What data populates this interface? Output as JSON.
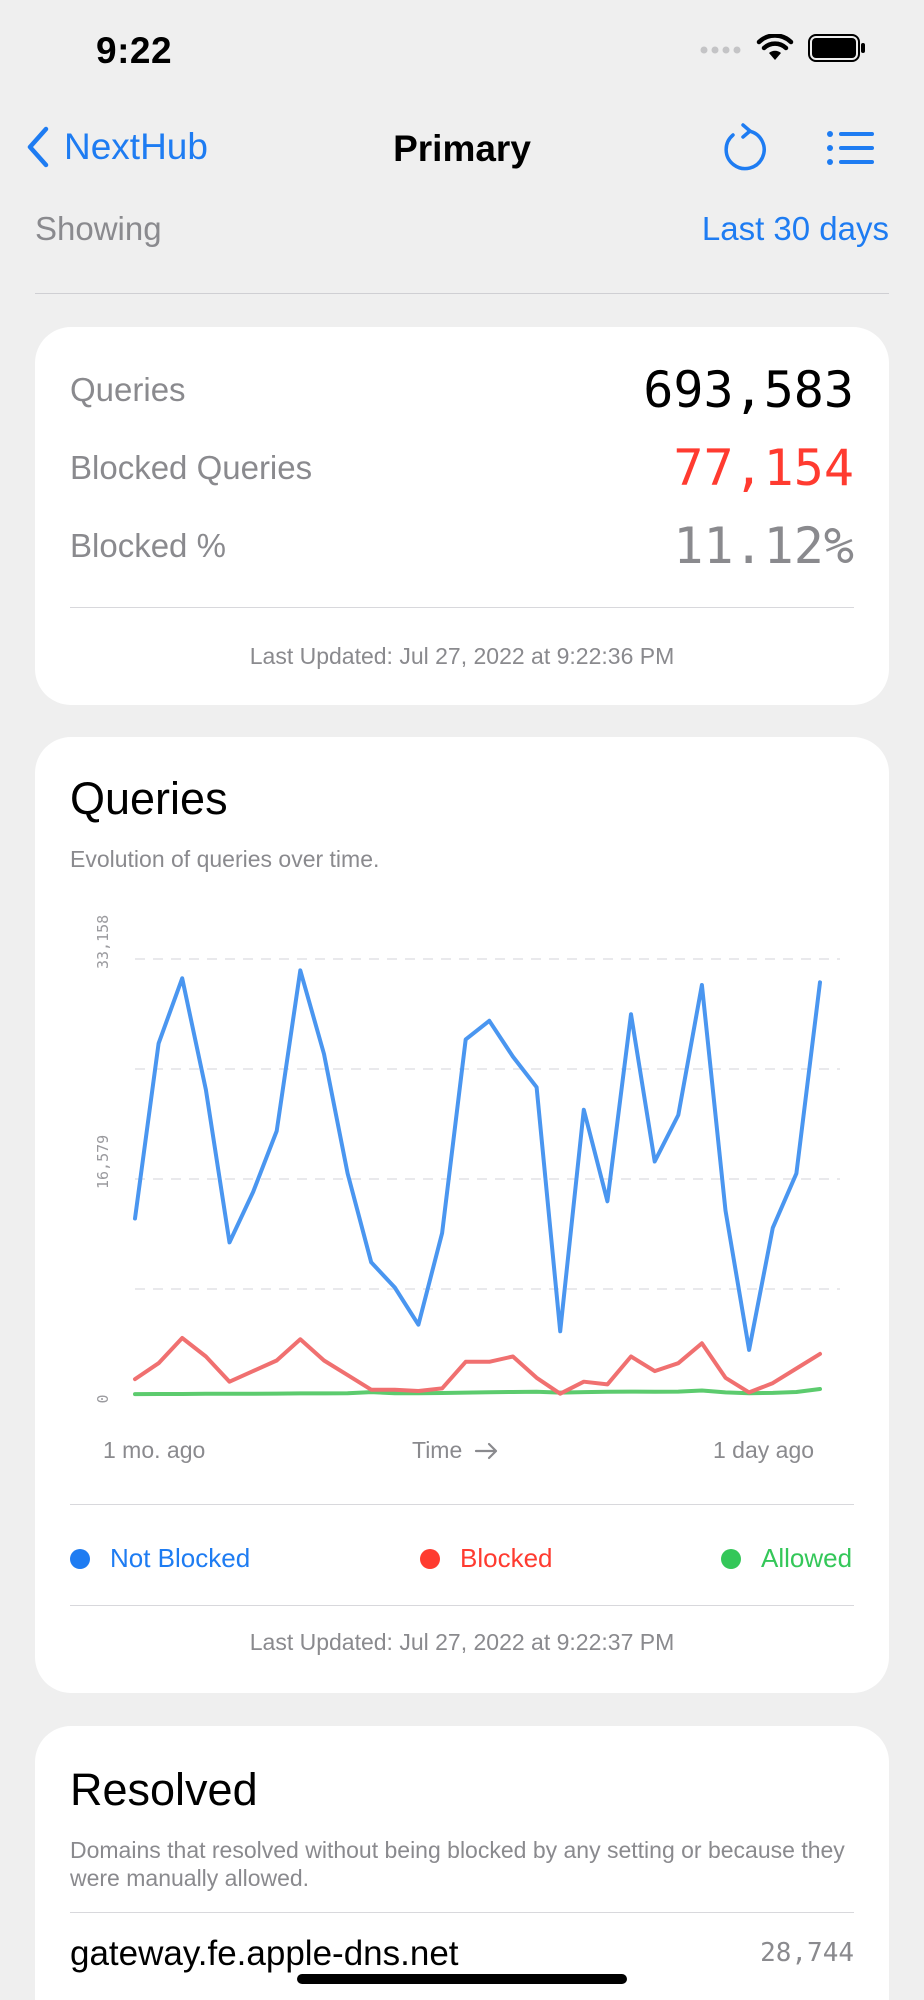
{
  "status_bar": {
    "time": "9:22"
  },
  "nav": {
    "back_label": "NextHub",
    "title": "Primary",
    "refresh_icon": "refresh-icon",
    "list_icon": "list-icon"
  },
  "showing": {
    "label": "Showing",
    "value": "Last 30 days"
  },
  "summary": {
    "queries_label": "Queries",
    "queries_value": "693,583",
    "blocked_label": "Blocked Queries",
    "blocked_value": "77,154",
    "percent_label": "Blocked %",
    "percent_value": "11.12%",
    "last_updated": "Last Updated: Jul 27, 2022 at 9:22:36 PM"
  },
  "queries_card": {
    "title": "Queries",
    "subtitle": "Evolution of queries over time.",
    "x_start": "1 mo. ago",
    "x_mid": "Time",
    "x_end": "1 day ago",
    "legend": [
      {
        "label": "Not Blocked",
        "color": "#1e7cf2"
      },
      {
        "label": "Blocked",
        "color": "#ff3b30"
      },
      {
        "label": "Allowed",
        "color": "#34c759"
      }
    ],
    "last_updated": "Last Updated: Jul 27, 2022 at 9:22:37 PM"
  },
  "chart_data": {
    "type": "line",
    "x": [
      1,
      2,
      3,
      4,
      5,
      6,
      7,
      8,
      9,
      10,
      11,
      12,
      13,
      14,
      15,
      16,
      17,
      18,
      19,
      20,
      21,
      22,
      23,
      24,
      25,
      26,
      27,
      28,
      29,
      30
    ],
    "y_ticks": [
      "0",
      "16,579",
      "33,158"
    ],
    "ylim": [
      0,
      33158
    ],
    "grid": true,
    "series": [
      {
        "name": "Not Blocked",
        "color": "#4a96f0",
        "values": [
          13600,
          26800,
          31700,
          23300,
          11800,
          15600,
          20200,
          32300,
          26000,
          17000,
          10300,
          8400,
          5600,
          12500,
          27100,
          28500,
          25800,
          23500,
          5100,
          21800,
          14900,
          29000,
          17900,
          21400,
          31200,
          14200,
          3700,
          12900,
          17000,
          31400
        ]
      },
      {
        "name": "Blocked",
        "color": "#f07070",
        "values": [
          1500,
          2700,
          4600,
          3200,
          1300,
          2100,
          2900,
          4500,
          2900,
          1800,
          700,
          700,
          600,
          800,
          2800,
          2800,
          3200,
          1600,
          400,
          1300,
          1100,
          3200,
          2100,
          2700,
          4200,
          1600,
          500,
          1200,
          2300,
          3400
        ]
      },
      {
        "name": "Allowed",
        "color": "#5ccb6e",
        "values": [
          370,
          380,
          380,
          390,
          400,
          400,
          410,
          420,
          420,
          430,
          520,
          430,
          440,
          450,
          480,
          510,
          530,
          540,
          480,
          520,
          540,
          560,
          550,
          560,
          640,
          500,
          440,
          460,
          530,
          750
        ]
      }
    ]
  },
  "resolved_card": {
    "title": "Resolved",
    "subtitle": "Domains that resolved without being blocked by any setting or because they were manually allowed.",
    "rows": [
      {
        "domain": "gateway.fe.apple-dns.net",
        "count": "28,744"
      }
    ]
  }
}
